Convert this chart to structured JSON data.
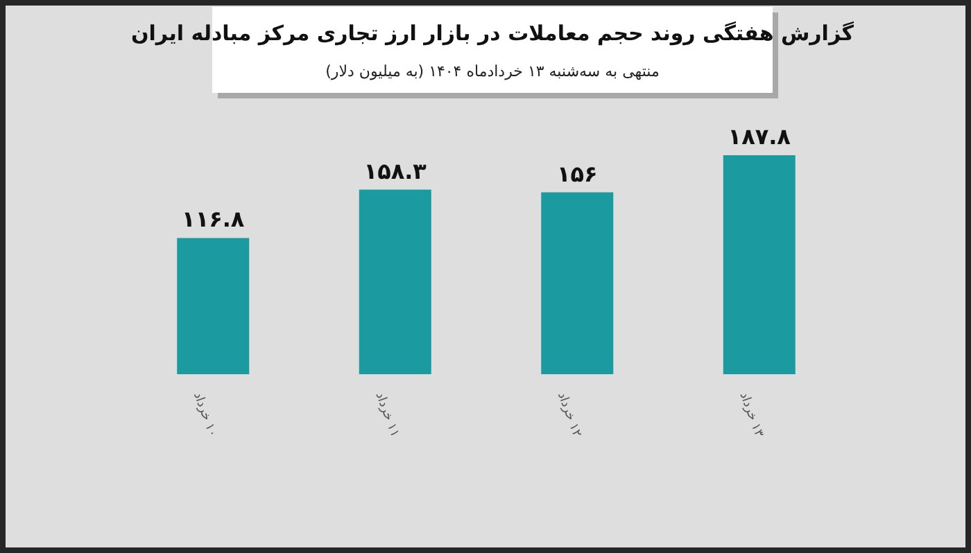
{
  "chart_data": {
    "type": "bar",
    "title": "گزارش هفتگی روند حجم معاملات در بازار ارز تجاری مرکز مبادله ایران",
    "subtitle": "منتهی به سه‌شنبه ۱۳ خردادماه ۱۴۰۴ (به میلیون دلار)",
    "categories": [
      "۱۰ خرداد",
      "۱۱ خرداد",
      "۱۲ خرداد",
      "۱۳ خرداد"
    ],
    "values": [
      116.8,
      158.3,
      156,
      187.8
    ],
    "value_labels": [
      "۱۱۶.۸",
      "۱۵۸.۳",
      "۱۵۶",
      "۱۸۷.۸"
    ],
    "color": "#1b9aa0"
  }
}
